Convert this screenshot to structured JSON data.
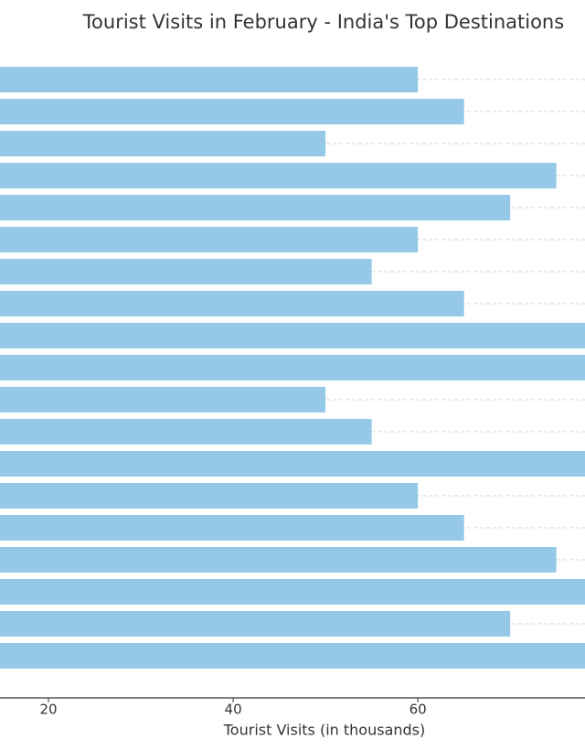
{
  "chart_data": {
    "type": "barh",
    "title": "Tourist Visits in February - India's Top Destinations",
    "xlabel": "Tourist Visits (in thousands)",
    "categories": [
      null,
      null,
      null,
      null,
      null,
      null,
      null,
      null,
      null,
      null,
      null,
      null,
      null,
      null,
      null,
      null,
      null,
      null,
      null
    ],
    "values": [
      60,
      65,
      50,
      75,
      70,
      60,
      55,
      65,
      80,
      80,
      50,
      55,
      80,
      60,
      65,
      75,
      80,
      70,
      80
    ],
    "color": "#94cae7",
    "xlim": [
      14.75,
      78.1
    ],
    "xticks": [
      20,
      40,
      60
    ],
    "grid": true
  }
}
